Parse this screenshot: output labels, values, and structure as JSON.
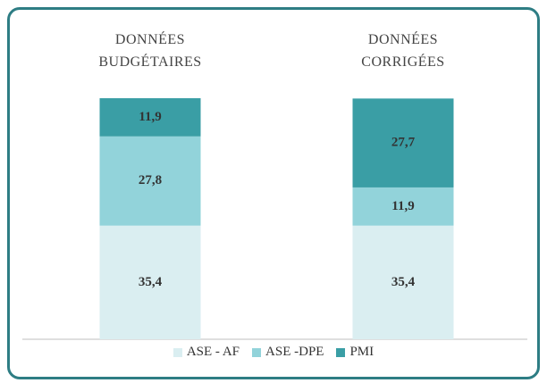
{
  "chart_data": {
    "type": "stacked_bar",
    "categories": [
      "DONNÉES BUDGÉTAIRES",
      "DONNÉES CORRIGÉES"
    ],
    "series": [
      {
        "name": "ASE - AF",
        "color": "#daeef1",
        "values": [
          35.4,
          35.4
        ],
        "value_labels": [
          "35,4",
          "35,4"
        ]
      },
      {
        "name": "ASE -DPE",
        "color": "#92d3da",
        "values": [
          27.8,
          11.9
        ],
        "value_labels": [
          "27,8",
          "11,9"
        ]
      },
      {
        "name": "PMI",
        "color": "#3a9ea5",
        "values": [
          11.9,
          27.7
        ],
        "value_labels": [
          "11,9",
          "27,7"
        ]
      }
    ]
  }
}
